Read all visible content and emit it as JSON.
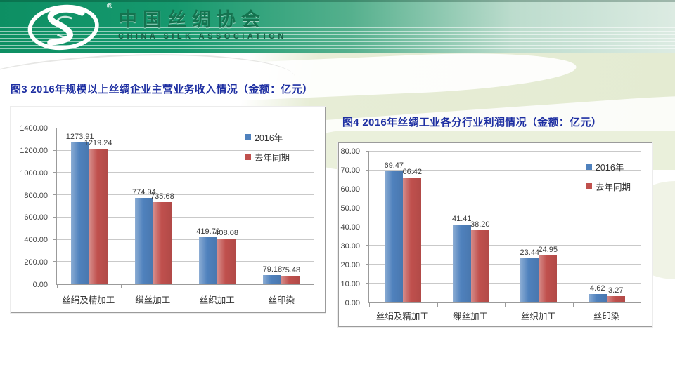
{
  "header": {
    "registered_mark": "®",
    "brand_cn": "中国丝绸协会",
    "brand_en": "CHINA SILK ASSOCIATION",
    "logo_icon": "silk-swirl-logo",
    "colors": {
      "header_green": "#16996E",
      "header_pale": "#DCEBE2"
    }
  },
  "figures": [
    {
      "title": "图3  2016年规模以上丝绸企业主营业务收入情况（金额：亿元）"
    },
    {
      "title": "图4  2016年丝绸工业各分行业利润情况（金额：亿元）"
    }
  ],
  "palette": {
    "series_blue": "#4F81BD",
    "series_red": "#C0504D",
    "title_blue": "#1E2FA2",
    "gridline_grey": "#C9C9C9"
  },
  "chart_data": [
    {
      "type": "bar",
      "title": "图3  2016年规模以上丝绸企业主营业务收入情况（金额：亿元）",
      "categories": [
        "丝绢及精加工",
        "缫丝加工",
        "丝织加工",
        "丝印染"
      ],
      "series": [
        {
          "name": "2016年",
          "color": "#4F81BD",
          "values": [
            1273.91,
            774.94,
            419.79,
            79.18
          ]
        },
        {
          "name": "去年同期",
          "color": "#C0504D",
          "values": [
            1219.24,
            735.68,
            408.08,
            75.48
          ]
        }
      ],
      "ylim": [
        0,
        1400
      ],
      "ytick_step": 200,
      "ytick_format": "two-decimals",
      "xlabel": "",
      "ylabel": "",
      "grid": true,
      "legend_position": "inside-top-right",
      "data_labels": true
    },
    {
      "type": "bar",
      "title": "图4  2016年丝绸工业各分行业利润情况（金额：亿元）",
      "categories": [
        "丝绢及精加工",
        "缫丝加工",
        "丝织加工",
        "丝印染"
      ],
      "series": [
        {
          "name": "2016年",
          "color": "#4F81BD",
          "values": [
            69.47,
            41.41,
            23.44,
            4.62
          ]
        },
        {
          "name": "去年同期",
          "color": "#C0504D",
          "values": [
            66.42,
            38.2,
            24.95,
            3.27
          ]
        }
      ],
      "ylim": [
        0,
        80
      ],
      "ytick_step": 10,
      "ytick_format": "two-decimals",
      "xlabel": "",
      "ylabel": "",
      "grid": true,
      "legend_position": "inside-top-right",
      "data_labels": true
    }
  ]
}
